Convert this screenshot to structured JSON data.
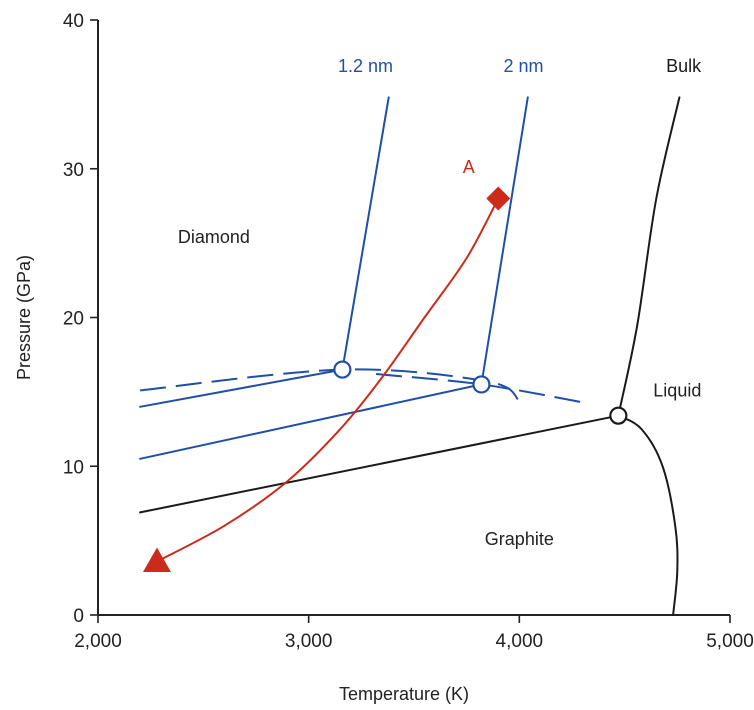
{
  "chart_data": {
    "type": "line",
    "title": "",
    "xlabel": "Temperature (K)",
    "ylabel": "Pressure (GPa)",
    "xlim": [
      2000,
      5000
    ],
    "ylim": [
      0,
      40
    ],
    "x_tick_labels": [
      "2,000",
      "3,000",
      "4,000",
      "5,000"
    ],
    "x_tick_values": [
      2000,
      3000,
      4000,
      5000
    ],
    "y_tick_labels": [
      "0",
      "10",
      "20",
      "30",
      "40"
    ],
    "y_tick_values": [
      0,
      10,
      20,
      30,
      40
    ],
    "grid": false,
    "region_labels": [
      {
        "text": "Diamond",
        "x": 2550,
        "y": 25
      },
      {
        "text": "Graphite",
        "x": 4000,
        "y": 4.7
      },
      {
        "text": "Liquid",
        "x": 4750,
        "y": 14.7
      }
    ],
    "colors": {
      "blue": "#1f4fa8",
      "red": "#cc2a1a",
      "black": "#1a1a1a"
    },
    "series": [
      {
        "name": "Bulk",
        "color": "#1a1a1a",
        "style": "solid",
        "label_at": [
          4780,
          36.5
        ],
        "segments": [
          [
            [
              2200,
              6.9
            ],
            [
              4470,
              13.4
            ]
          ],
          [
            [
              4470,
              13.4
            ],
            [
              4560,
              19.5
            ],
            [
              4650,
              28.0
            ],
            [
              4760,
              34.8
            ]
          ],
          [
            [
              4470,
              13.4
            ],
            [
              4580,
              12.5
            ],
            [
              4680,
              10.0
            ],
            [
              4740,
              6.0
            ],
            [
              4750,
              3.0
            ],
            [
              4730,
              0.0
            ]
          ]
        ],
        "markers": [
          {
            "x": 4470,
            "y": 13.4,
            "shape": "open-circle"
          }
        ]
      },
      {
        "name": "2 nm",
        "color": "#1f4fa8",
        "style": "solid",
        "label_at": [
          4020,
          36.5
        ],
        "segments": [
          [
            [
              2200,
              10.5
            ],
            [
              3820,
              15.5
            ]
          ],
          [
            [
              3820,
              15.5
            ],
            [
              4040,
              34.8
            ]
          ]
        ],
        "dashed_segments": [
          [
            [
              3320,
              16.2
            ],
            [
              3820,
              15.5
            ],
            [
              4300,
              14.3
            ]
          ]
        ],
        "markers": [
          {
            "x": 3820,
            "y": 15.5,
            "shape": "open-circle"
          }
        ]
      },
      {
        "name": "1.2 nm",
        "color": "#1f4fa8",
        "style": "solid",
        "label_at": [
          3270,
          36.5
        ],
        "segments": [
          [
            [
              2200,
              14.0
            ],
            [
              3160,
              16.5
            ]
          ],
          [
            [
              3160,
              16.5
            ],
            [
              3380,
              34.8
            ]
          ]
        ],
        "dashed_segments": [
          [
            [
              2200,
              15.1
            ],
            [
              3160,
              16.5
            ],
            [
              3850,
              15.7
            ],
            [
              4000,
              14.4
            ]
          ]
        ],
        "markers": [
          {
            "x": 3160,
            "y": 16.5,
            "shape": "open-circle"
          }
        ]
      },
      {
        "name": "A",
        "color": "#cc2a1a",
        "style": "solid",
        "label_at": [
          3760,
          29.7
        ],
        "segments": [
          [
            [
              3900,
              28.0
            ],
            [
              3750,
              24.0
            ],
            [
              3550,
              20.0
            ],
            [
              3350,
              16.0
            ],
            [
              3150,
              12.5
            ],
            [
              2900,
              9.0
            ],
            [
              2600,
              6.0
            ],
            [
              2280,
              3.6
            ]
          ]
        ],
        "markers": [
          {
            "x": 3900,
            "y": 28.0,
            "shape": "diamond"
          },
          {
            "x": 2280,
            "y": 3.6,
            "shape": "triangle"
          }
        ]
      }
    ]
  }
}
